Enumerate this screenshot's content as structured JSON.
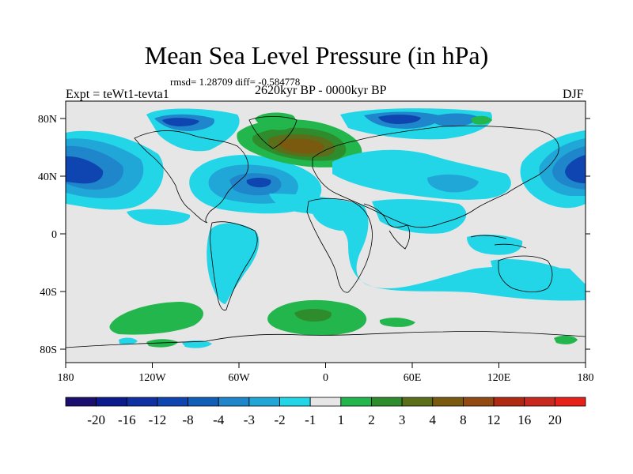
{
  "title": "Mean Sea Level Pressure (in hPa)",
  "stats": "rmsd= 1.28709 diff= -0.584778",
  "left_label": "Expt = teWt1-tevta1",
  "center_label": "2620kyr BP - 0000kyr BP",
  "right_label": "DJF",
  "lat_labels": [
    "80N",
    "40N",
    "0",
    "40S",
    "80S"
  ],
  "lon_labels": [
    "180",
    "120W",
    "60W",
    "0",
    "60E",
    "120E",
    "180"
  ],
  "colorbar": {
    "labels": [
      "-20",
      "-16",
      "-12",
      "-8",
      "-4",
      "-3",
      "-2",
      "-1",
      "1",
      "2",
      "3",
      "4",
      "8",
      "12",
      "16",
      "20"
    ],
    "colors": [
      "#1a0f6e",
      "#0b1a8c",
      "#0f2fa3",
      "#0f45b0",
      "#0f5fb8",
      "#1f86cc",
      "#21a6d8",
      "#22d6e8",
      "#e6e6e6",
      "#22b64c",
      "#2f8c2c",
      "#5b6e1a",
      "#7a5a0f",
      "#934a12",
      "#b02a12",
      "#c8281e",
      "#e8201a"
    ]
  }
}
